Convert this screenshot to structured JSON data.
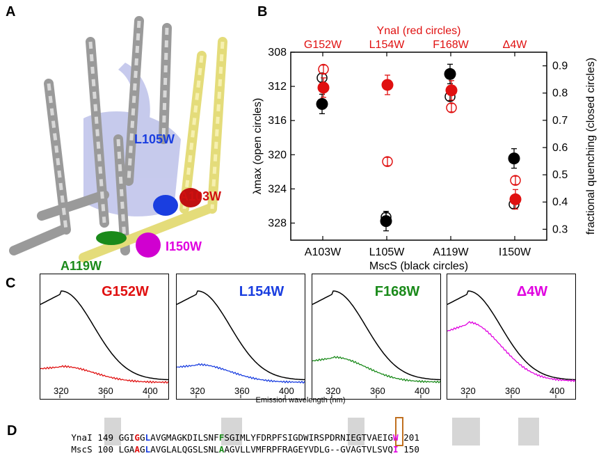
{
  "panels": {
    "A": {
      "letter": "A",
      "labels": [
        {
          "text": "L105W",
          "color": "#1a3ee0"
        },
        {
          "text": "A103W",
          "color": "#d01010"
        },
        {
          "text": "I150W",
          "color": "#e000e0"
        },
        {
          "text": "A119W",
          "color": "#1a8a1a"
        }
      ]
    },
    "B": {
      "letter": "B",
      "top_title": "YnaI (red circles)",
      "top_categories": [
        "G152W",
        "L154W",
        "F168W",
        "Δ4W"
      ],
      "bottom_title": "MscS (black circles)"
    },
    "C": {
      "letter": "C",
      "x_axis_label": "Emission wavelength (nm)",
      "x_ticks": [
        "320",
        "360",
        "400"
      ],
      "spectra": [
        {
          "title": "G152W",
          "color": "#e01010"
        },
        {
          "title": "L154W",
          "color": "#1a3ee0"
        },
        {
          "title": "F168W",
          "color": "#1a8a1a"
        },
        {
          "title": "Δ4W",
          "color": "#e000e0"
        }
      ]
    },
    "D": {
      "letter": "D",
      "rows": [
        {
          "name": "YnaI",
          "start": "149",
          "end": "201",
          "seq": [
            {
              "t": "GGI",
              "c": ""
            },
            {
              "t": "G",
              "c": "#e01010"
            },
            {
              "t": "G",
              "c": ""
            },
            {
              "t": "L",
              "c": "#1a3ee0"
            },
            {
              "t": "AVGMAGKDILSNF",
              "c": ""
            },
            {
              "t": "F",
              "c": "#1a8a1a"
            },
            {
              "t": "SGIMLYFDRPFSIGDWIRSPDRNIEGTVAEIG",
              "c": ""
            },
            {
              "t": "W",
              "c": "#e000e0"
            }
          ]
        },
        {
          "name": "MscS",
          "start": "100",
          "end": "150",
          "seq": [
            {
              "t": "LGA",
              "c": ""
            },
            {
              "t": "A",
              "c": "#e01010"
            },
            {
              "t": "G",
              "c": ""
            },
            {
              "t": "L",
              "c": "#1a3ee0"
            },
            {
              "t": "AVGLALQGSLSNL",
              "c": ""
            },
            {
              "t": "A",
              "c": "#1a8a1a"
            },
            {
              "t": "AGVLLVMFRPFRAGEYVDLG--GVAGTVLSVQ",
              "c": ""
            },
            {
              "t": "I",
              "c": "#e000e0"
            }
          ]
        }
      ]
    }
  },
  "chart_data": {
    "type": "scatter",
    "x_categories": [
      "A103W",
      "L105W",
      "A119W",
      "I150W"
    ],
    "x_top_categories": [
      "G152W",
      "L154W",
      "F168W",
      "Δ4W"
    ],
    "xlabel": "MscS (black circles)",
    "x_top_label": "YnaI (red circles)",
    "ylabel_left": "λmax (open circles)",
    "ylabel_right": "fractional quenching (closed circles)",
    "ylim_left": [
      330,
      308
    ],
    "ylim_right": [
      0.26,
      0.95
    ],
    "y_ticks_left": [
      "308",
      "312",
      "316",
      "320",
      "324",
      "328"
    ],
    "y_ticks_right": [
      "0.9",
      "0.8",
      "0.7",
      "0.6",
      "0.5",
      "0.4",
      "0.3"
    ],
    "series": [
      {
        "group": "MscS",
        "style": "open",
        "color": "#000000",
        "axis": "left",
        "values": [
          311.0,
          327.3,
          313.2,
          325.8
        ]
      },
      {
        "group": "YnaI",
        "style": "open",
        "color": "#e01010",
        "axis": "left",
        "values": [
          310.0,
          320.8,
          314.5,
          323.0
        ]
      },
      {
        "group": "MscS",
        "style": "closed",
        "color": "#000000",
        "axis": "right",
        "values": [
          0.76,
          0.33,
          0.87,
          0.56
        ]
      },
      {
        "group": "YnaI",
        "style": "closed",
        "color": "#e01010",
        "axis": "right",
        "values": [
          0.82,
          0.83,
          0.81,
          0.41
        ]
      }
    ]
  }
}
